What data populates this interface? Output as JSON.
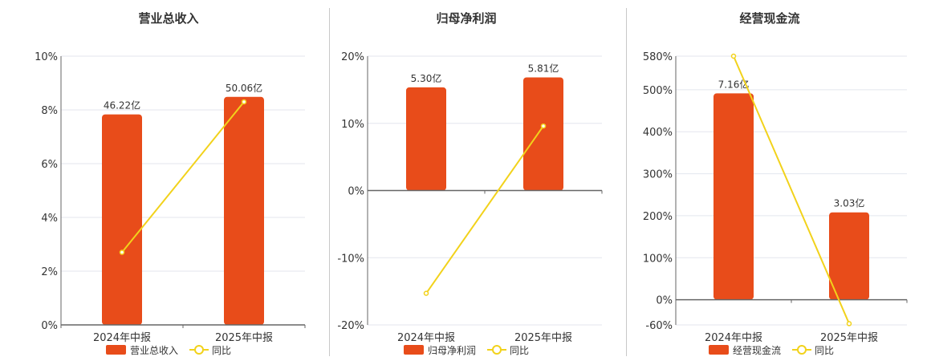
{
  "colors": {
    "bar": "#e84c1a",
    "line": "#f2d21b",
    "grid": "#e3e6ee",
    "axis": "#666666"
  },
  "chart_data": [
    {
      "type": "bar",
      "title": "营业总收入",
      "categories": [
        "2024年中报",
        "2025年中报"
      ],
      "series": [
        {
          "name": "营业总收入",
          "type": "bar",
          "values": [
            46.22,
            50.06
          ],
          "labels": [
            "46.22亿",
            "50.06亿"
          ],
          "axis": "bar"
        },
        {
          "name": "同比",
          "type": "line",
          "values": [
            2.7,
            8.3
          ]
        }
      ],
      "ylim": [
        0,
        10
      ],
      "yticks": [
        0,
        2,
        4,
        6,
        8,
        10
      ],
      "ytick_labels": [
        "0%",
        "2%",
        "4%",
        "6%",
        "8%",
        "10%"
      ],
      "bar_axis_max": 59,
      "grid": true,
      "legend_position": "bottom"
    },
    {
      "type": "bar",
      "title": "归母净利润",
      "categories": [
        "2024年中报",
        "2025年中报"
      ],
      "series": [
        {
          "name": "归母净利润",
          "type": "bar",
          "values": [
            5.3,
            5.81
          ],
          "labels": [
            "5.30亿",
            "5.81亿"
          ],
          "axis": "bar"
        },
        {
          "name": "同比",
          "type": "line",
          "values": [
            -15.3,
            9.6
          ]
        }
      ],
      "ylim": [
        -20,
        20
      ],
      "yticks": [
        -20,
        -10,
        0,
        10,
        20
      ],
      "ytick_labels": [
        "-20%",
        "-10%",
        "0%",
        "10%",
        "20%"
      ],
      "bar_axis_max": 6.9,
      "grid": true,
      "legend_position": "bottom"
    },
    {
      "type": "bar",
      "title": "经营现金流",
      "categories": [
        "2024年中报",
        "2025年中报"
      ],
      "series": [
        {
          "name": "经营现金流",
          "type": "bar",
          "values": [
            7.16,
            3.03
          ],
          "labels": [
            "7.16亿",
            "3.03亿"
          ],
          "axis": "bar"
        },
        {
          "name": "同比",
          "type": "line",
          "values": [
            580,
            -57
          ]
        }
      ],
      "ylim": [
        -60,
        580
      ],
      "yticks": [
        -60,
        0,
        100,
        200,
        300,
        400,
        500,
        580
      ],
      "ytick_labels": [
        "-60%",
        "0%",
        "100%",
        "200%",
        "300%",
        "400%",
        "500%",
        "580%"
      ],
      "bar_axis_max": 8.45,
      "grid": true,
      "legend_position": "bottom"
    }
  ]
}
